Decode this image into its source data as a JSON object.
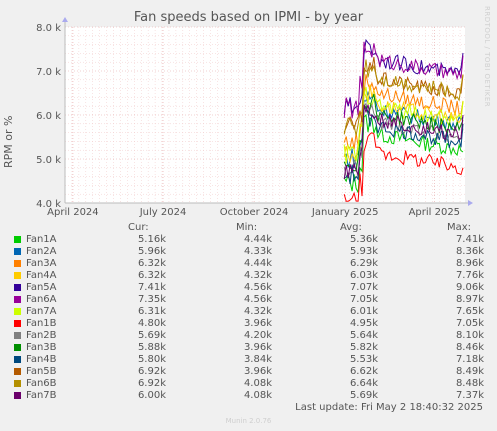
{
  "chart_data": {
    "type": "line",
    "title": "Fan speeds based on IPMI - by year",
    "ylabel": "RPM or %",
    "ylim": [
      4000,
      8000
    ],
    "yticks": [
      "4.0 k",
      "5.0 k",
      "6.0 k",
      "7.0 k",
      "8.0 k"
    ],
    "xticks": [
      "April 2024",
      "July 2024",
      "October 2024",
      "January 2025",
      "April 2025"
    ],
    "xrange": [
      "2024-03-24",
      "2025-05-02"
    ],
    "data_start": "2024-12-31",
    "grid": true,
    "series": [
      {
        "name": "Fan1A",
        "color": "#00cc00",
        "cur": "5.16k",
        "min": "4.44k",
        "avg": "5.36k",
        "max": "7.41k"
      },
      {
        "name": "Fan2A",
        "color": "#0066b3",
        "cur": "5.96k",
        "min": "4.33k",
        "avg": "5.93k",
        "max": "8.36k"
      },
      {
        "name": "Fan3A",
        "color": "#ff8000",
        "cur": "6.32k",
        "min": "4.44k",
        "avg": "6.29k",
        "max": "8.96k"
      },
      {
        "name": "Fan4A",
        "color": "#ffcc00",
        "cur": "6.32k",
        "min": "4.32k",
        "avg": "6.03k",
        "max": "7.76k"
      },
      {
        "name": "Fan5A",
        "color": "#330099",
        "cur": "7.41k",
        "min": "4.56k",
        "avg": "7.07k",
        "max": "9.06k"
      },
      {
        "name": "Fan6A",
        "color": "#990099",
        "cur": "7.35k",
        "min": "4.56k",
        "avg": "7.05k",
        "max": "8.97k"
      },
      {
        "name": "Fan7A",
        "color": "#ccff00",
        "cur": "6.31k",
        "min": "4.32k",
        "avg": "6.01k",
        "max": "7.65k"
      },
      {
        "name": "Fan1B",
        "color": "#ff0000",
        "cur": "4.80k",
        "min": "3.96k",
        "avg": "4.95k",
        "max": "7.05k"
      },
      {
        "name": "Fan2B",
        "color": "#808080",
        "cur": "5.69k",
        "min": "4.20k",
        "avg": "5.64k",
        "max": "8.10k"
      },
      {
        "name": "Fan3B",
        "color": "#008f00",
        "cur": "5.88k",
        "min": "3.96k",
        "avg": "5.82k",
        "max": "8.46k"
      },
      {
        "name": "Fan4B",
        "color": "#00487d",
        "cur": "5.80k",
        "min": "3.84k",
        "avg": "5.53k",
        "max": "7.18k"
      },
      {
        "name": "Fan5B",
        "color": "#b35a00",
        "cur": "6.92k",
        "min": "3.96k",
        "avg": "6.62k",
        "max": "8.49k"
      },
      {
        "name": "Fan6B",
        "color": "#b38f00",
        "cur": "6.92k",
        "min": "4.08k",
        "avg": "6.64k",
        "max": "8.48k"
      },
      {
        "name": "Fan7B",
        "color": "#6b006b",
        "cur": "6.00k",
        "min": "4.08k",
        "avg": "5.69k",
        "max": "7.37k"
      }
    ]
  },
  "legend": {
    "cur": "Cur:",
    "min": "Min:",
    "avg": "Avg:",
    "max": "Max:"
  },
  "last_update": "Last update: Fri May  2 18:40:32 2025",
  "watermark": "RRDTOOL / TOBI OETIKER",
  "footer": "Munin 2.0.76"
}
